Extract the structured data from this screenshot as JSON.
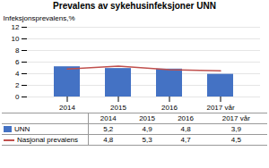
{
  "chart_data": {
    "type": "bar",
    "title": "Prevalens av sykehusinfeksjoner UNN",
    "y_label": "Infeksjonsprevalens,%",
    "categories": [
      "2014",
      "2015",
      "2016",
      "2017 vår"
    ],
    "series": [
      {
        "name": "UNN",
        "type": "bar",
        "color": "#4472C4",
        "values": [
          5.2,
          4.9,
          4.8,
          3.9
        ],
        "value_labels": [
          "5,2",
          "4,9",
          "4,8",
          "3,9"
        ]
      },
      {
        "name": "Nasjonal prevalens",
        "type": "line",
        "color": "#C0504D",
        "values": [
          4.8,
          5.3,
          4.7,
          4.5
        ],
        "value_labels": [
          "4,8",
          "5,3",
          "4,7",
          "4,5"
        ]
      }
    ],
    "ylim": [
      0,
      12
    ],
    "yticks": [
      0,
      2,
      4,
      6,
      8,
      10,
      12
    ],
    "grid": true,
    "legend": "bottom"
  }
}
